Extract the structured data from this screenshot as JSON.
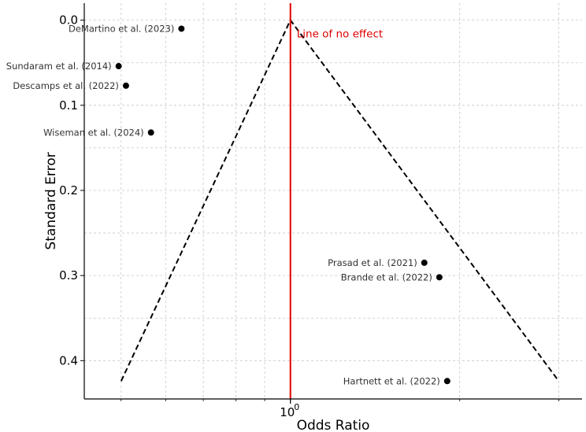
{
  "chart_data": {
    "type": "scatter",
    "title": "",
    "xlabel": "Odds Ratio",
    "ylabel": "Standard Error",
    "x_scale": "log",
    "xlim": [
      0.43,
      3.3
    ],
    "ylim": [
      0.445,
      -0.02
    ],
    "y_inverted": true,
    "grid": true,
    "x_ticks": [
      {
        "value": 1.0,
        "label": "10"
      }
    ],
    "x_tick_superscript": "0",
    "y_ticks": [
      {
        "value": 0.0,
        "label": "0.0"
      },
      {
        "value": 0.1,
        "label": "0.1"
      },
      {
        "value": 0.2,
        "label": "0.2"
      },
      {
        "value": 0.3,
        "label": "0.3"
      },
      {
        "value": 0.4,
        "label": "0.4"
      }
    ],
    "points": [
      {
        "label": "DeMartino et al. (2023)",
        "x": 0.64,
        "y": 0.01
      },
      {
        "label": "Sundaram et al. (2014)",
        "x": 0.495,
        "y": 0.054
      },
      {
        "label": "Descamps et al. (2022)",
        "x": 0.51,
        "y": 0.077
      },
      {
        "label": "Wiseman et al. (2024)",
        "x": 0.565,
        "y": 0.132
      },
      {
        "label": "Prasad et al. (2021)",
        "x": 1.73,
        "y": 0.285
      },
      {
        "label": "Brande et al. (2022)",
        "x": 1.84,
        "y": 0.302
      },
      {
        "label": "Hartnett et al. (2022)",
        "x": 1.9,
        "y": 0.424
      }
    ],
    "reference_line": {
      "x": 1.0,
      "label": "Line of no effect",
      "color": "#e00000"
    },
    "funnel": {
      "apex": [
        1.0,
        0.0
      ],
      "left_base": [
        0.5,
        0.424
      ],
      "right_base": [
        3.0,
        0.424
      ]
    },
    "colors": {
      "point": "#000000",
      "funnel": "#000000",
      "grid": "#c8c8c8"
    }
  }
}
